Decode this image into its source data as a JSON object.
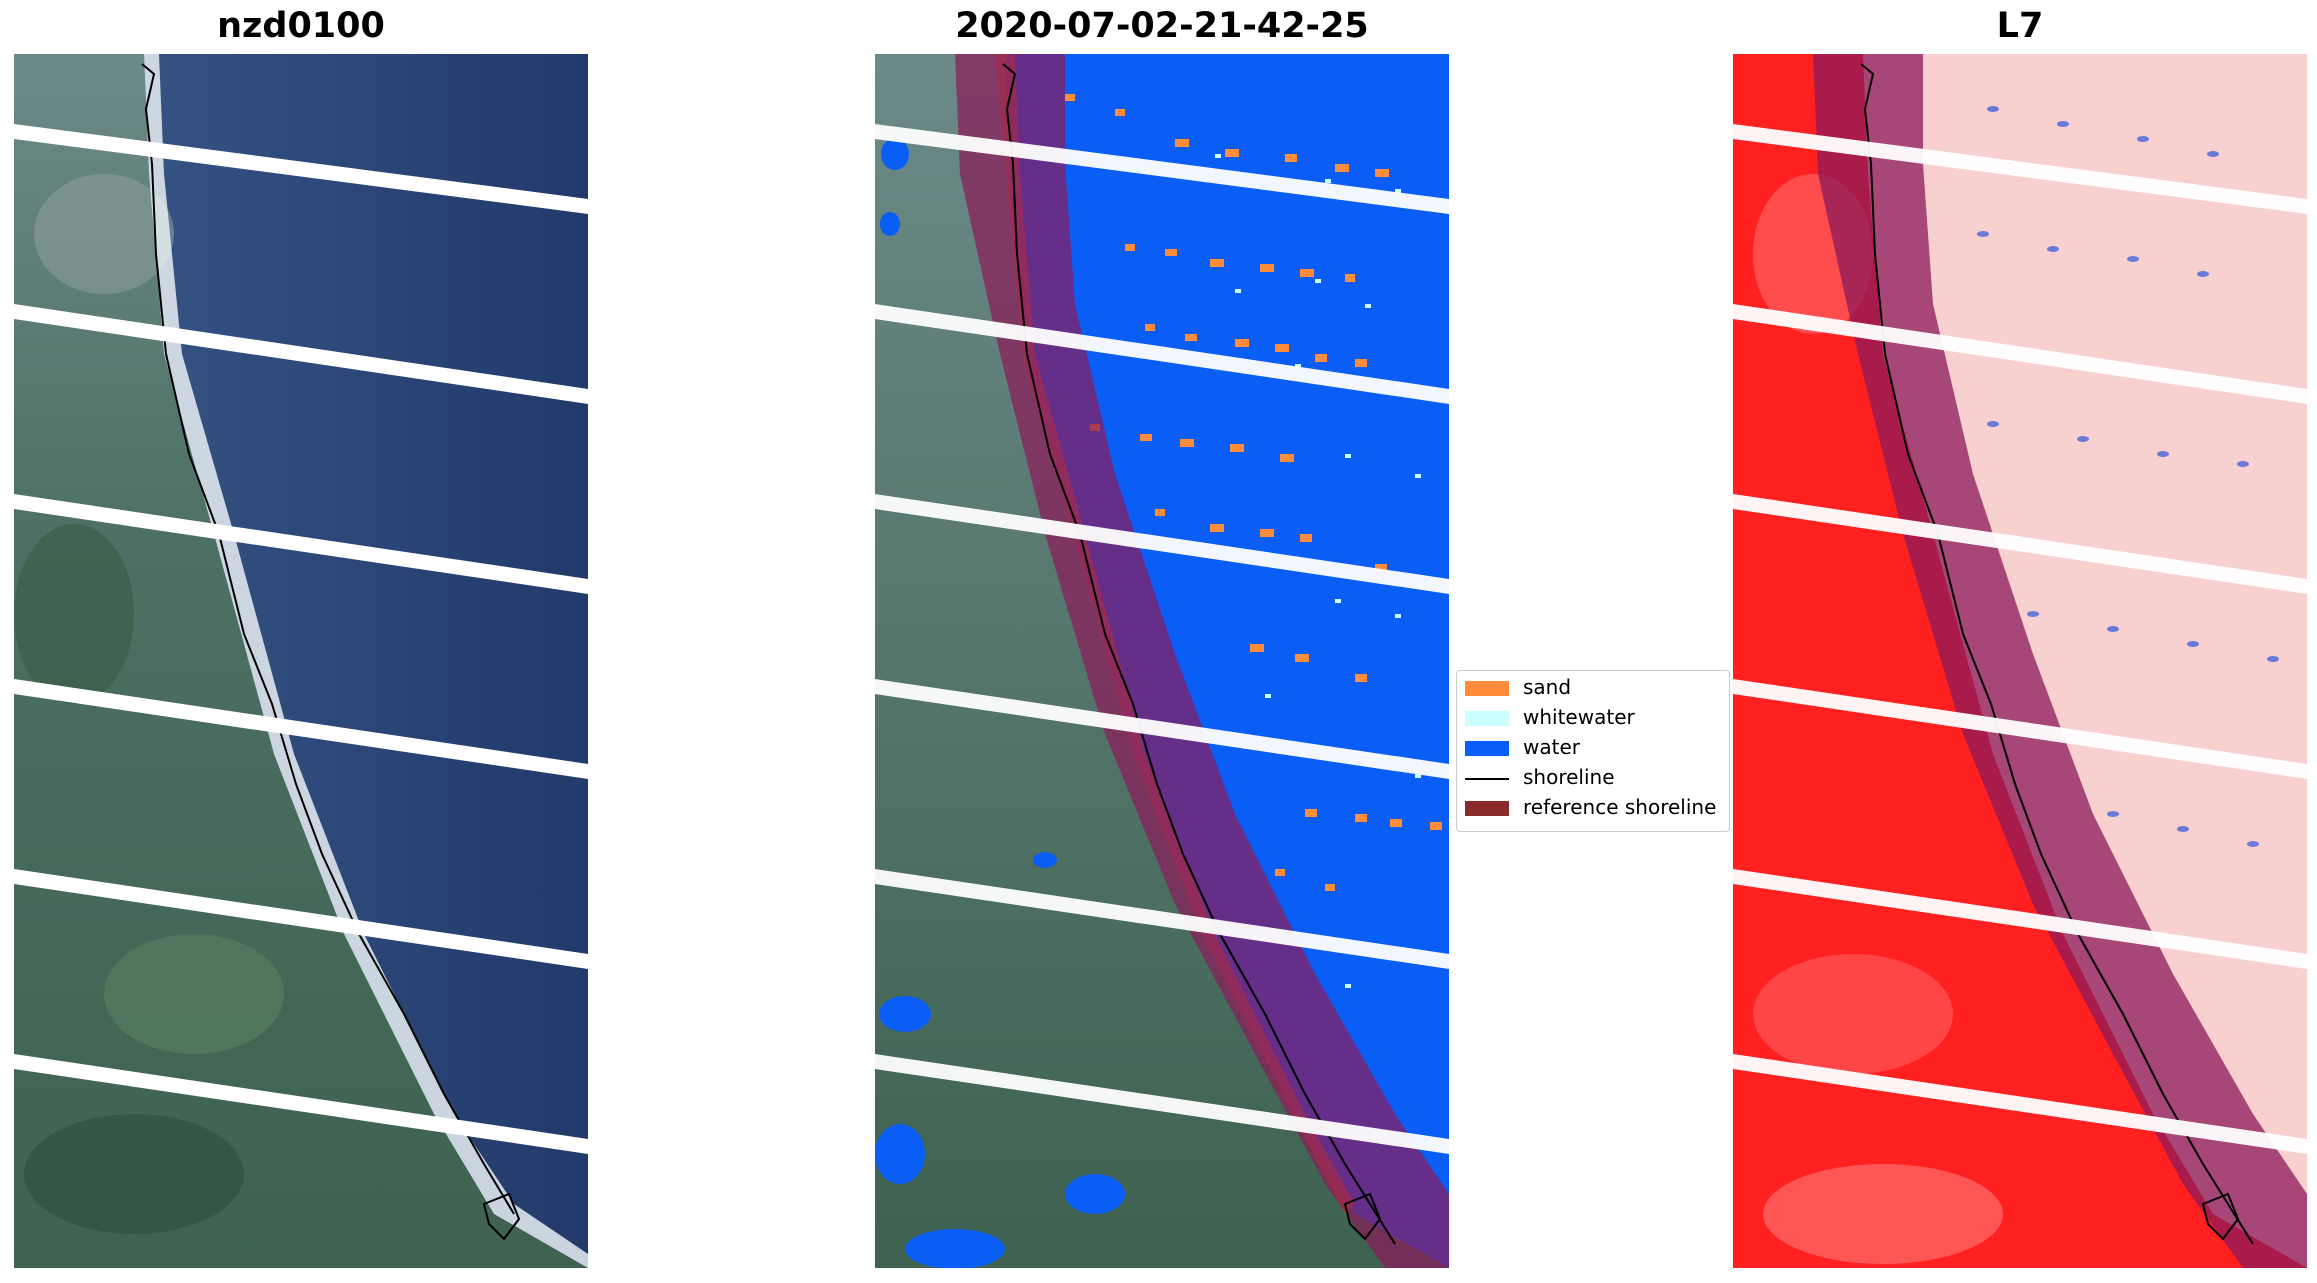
{
  "panels": [
    {
      "id": "rgb",
      "title": "nzd0100"
    },
    {
      "id": "classified",
      "title": "2020-07-02-21-42-25"
    },
    {
      "id": "mndwi",
      "title": "L7"
    }
  ],
  "legend": {
    "placement": "center",
    "items": [
      {
        "label": "sand",
        "color": "#ff8c3a",
        "kind": "patch"
      },
      {
        "label": "whitewater",
        "color": "#ccffff",
        "kind": "patch"
      },
      {
        "label": "water",
        "color": "#0a5ef5",
        "kind": "patch"
      },
      {
        "label": "shoreline",
        "color": "#000000",
        "kind": "line"
      },
      {
        "label": "reference shoreline",
        "color": "#8b2a2a",
        "kind": "patch"
      }
    ]
  },
  "colors": {
    "ocean_dark": "#233e73",
    "land_green": "#4a6b5a",
    "beach_white": "#e8eef2",
    "water_class": "#0a5ef5",
    "sand_class": "#ff8c3a",
    "ref_buffer": "#8b1a5a",
    "mndwi_land": "#ff2020",
    "mndwi_water": "#f9d0d0",
    "gap_stripe": "#ffffff"
  }
}
